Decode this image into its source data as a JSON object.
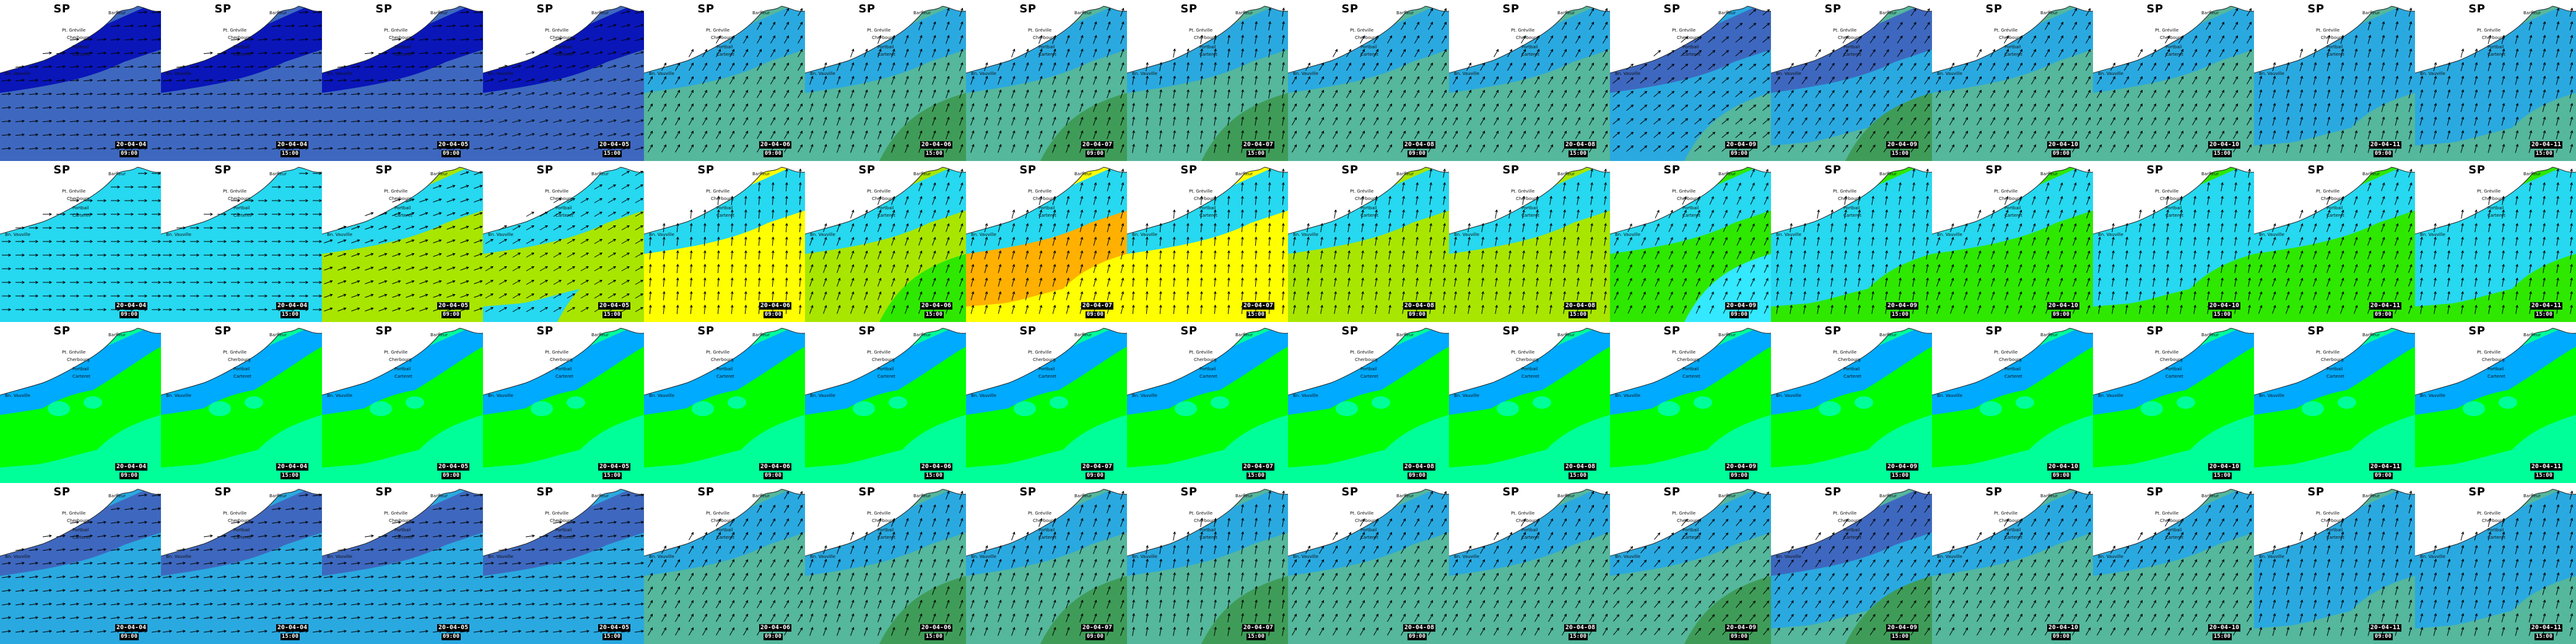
{
  "map_title": "SP",
  "place_names": [
    "Barfleur",
    "Pt. Gréville",
    "Cherbourg",
    "Portbail",
    "Carteret",
    "Bn. Vauville"
  ],
  "palette": {
    "deep_blue": "#0a16b8",
    "slate_blue": "#3e68bf",
    "mid_blue": "#2aa9e0",
    "sea_green": "#55b79c",
    "dark_green": "#3f9c58",
    "cyan": "#33e8ff",
    "light_cyan": "#26d8f0",
    "yellow_green": "#a8e600",
    "yellow": "#ffff00",
    "orange": "#ffb000",
    "green": "#2ee800",
    "bright_green": "#00ff00",
    "mint": "#00ff99",
    "sky": "#00aaff",
    "land": "#ffffff",
    "arrow": "#000000"
  },
  "rows": [
    {
      "frames": [
        {
          "date": "20-04-04",
          "time": "09:00",
          "scheme": "blue-a"
        },
        {
          "date": "20-04-04",
          "time": "15:00",
          "scheme": "blue-a"
        },
        {
          "date": "20-04-05",
          "time": "09:00",
          "scheme": "blue-a"
        },
        {
          "date": "20-04-05",
          "time": "15:00",
          "scheme": "blue-b"
        },
        {
          "date": "20-04-06",
          "time": "09:00",
          "scheme": "green-a"
        },
        {
          "date": "20-04-06",
          "time": "15:00",
          "scheme": "green-b"
        },
        {
          "date": "20-04-07",
          "time": "09:00",
          "scheme": "green-b"
        },
        {
          "date": "20-04-07",
          "time": "15:00",
          "scheme": "green-c"
        },
        {
          "date": "20-04-08",
          "time": "09:00",
          "scheme": "green-a"
        },
        {
          "date": "20-04-08",
          "time": "15:00",
          "scheme": "green-a"
        },
        {
          "date": "20-04-09",
          "time": "09:00",
          "scheme": "blue-c"
        },
        {
          "date": "20-04-09",
          "time": "15:00",
          "scheme": "green-d"
        },
        {
          "date": "20-04-10",
          "time": "09:00",
          "scheme": "green-a"
        },
        {
          "date": "20-04-10",
          "time": "15:00",
          "scheme": "green-a"
        },
        {
          "date": "20-04-11",
          "time": "09:00",
          "scheme": "green-e"
        },
        {
          "date": "20-04-11",
          "time": "15:00",
          "scheme": "green-e"
        }
      ]
    },
    {
      "frames": [
        {
          "date": "20-04-04",
          "time": "09:00",
          "scheme": "cyan"
        },
        {
          "date": "20-04-04",
          "time": "15:00",
          "scheme": "cyan"
        },
        {
          "date": "20-04-05",
          "time": "09:00",
          "scheme": "cyan-yg"
        },
        {
          "date": "20-04-05",
          "time": "15:00",
          "scheme": "cyan-yg2"
        },
        {
          "date": "20-04-06",
          "time": "09:00",
          "scheme": "yellow"
        },
        {
          "date": "20-04-06",
          "time": "15:00",
          "scheme": "yg-green"
        },
        {
          "date": "20-04-07",
          "time": "09:00",
          "scheme": "orange"
        },
        {
          "date": "20-04-07",
          "time": "15:00",
          "scheme": "yellow"
        },
        {
          "date": "20-04-08",
          "time": "09:00",
          "scheme": "yg"
        },
        {
          "date": "20-04-08",
          "time": "15:00",
          "scheme": "yg"
        },
        {
          "date": "20-04-09",
          "time": "09:00",
          "scheme": "green-cyan"
        },
        {
          "date": "20-04-09",
          "time": "15:00",
          "scheme": "cyan-green"
        },
        {
          "date": "20-04-10",
          "time": "09:00",
          "scheme": "green-cyan2"
        },
        {
          "date": "20-04-10",
          "time": "15:00",
          "scheme": "cyan-green"
        },
        {
          "date": "20-04-11",
          "time": "09:00",
          "scheme": "green-cyan2"
        },
        {
          "date": "20-04-11",
          "time": "15:00",
          "scheme": "cyan-green"
        }
      ]
    },
    {
      "frames": [
        {
          "date": "20-04-04",
          "time": "09:00",
          "scheme": "depth"
        },
        {
          "date": "20-04-04",
          "time": "15:00",
          "scheme": "depth"
        },
        {
          "date": "20-04-05",
          "time": "09:00",
          "scheme": "depth"
        },
        {
          "date": "20-04-05",
          "time": "15:00",
          "scheme": "depth"
        },
        {
          "date": "20-04-06",
          "time": "09:00",
          "scheme": "depth"
        },
        {
          "date": "20-04-06",
          "time": "15:00",
          "scheme": "depth"
        },
        {
          "date": "20-04-07",
          "time": "09:00",
          "scheme": "depth"
        },
        {
          "date": "20-04-07",
          "time": "15:00",
          "scheme": "depth"
        },
        {
          "date": "20-04-08",
          "time": "09:00",
          "scheme": "depth"
        },
        {
          "date": "20-04-08",
          "time": "15:00",
          "scheme": "depth"
        },
        {
          "date": "20-04-09",
          "time": "09:00",
          "scheme": "depth"
        },
        {
          "date": "20-04-09",
          "time": "15:00",
          "scheme": "depth"
        },
        {
          "date": "20-04-10",
          "time": "09:00",
          "scheme": "depth"
        },
        {
          "date": "20-04-10",
          "time": "15:00",
          "scheme": "depth"
        },
        {
          "date": "20-04-11",
          "time": "09:00",
          "scheme": "depth"
        },
        {
          "date": "20-04-11",
          "time": "15:00",
          "scheme": "depth"
        }
      ]
    },
    {
      "frames": [
        {
          "date": "20-04-04",
          "time": "09:00",
          "scheme": "blue-d"
        },
        {
          "date": "20-04-04",
          "time": "15:00",
          "scheme": "blue-d"
        },
        {
          "date": "20-04-05",
          "time": "09:00",
          "scheme": "blue-d"
        },
        {
          "date": "20-04-05",
          "time": "15:00",
          "scheme": "blue-d"
        },
        {
          "date": "20-04-06",
          "time": "09:00",
          "scheme": "green-a"
        },
        {
          "date": "20-04-06",
          "time": "15:00",
          "scheme": "green-b"
        },
        {
          "date": "20-04-07",
          "time": "09:00",
          "scheme": "green-b"
        },
        {
          "date": "20-04-07",
          "time": "15:00",
          "scheme": "green-c"
        },
        {
          "date": "20-04-08",
          "time": "09:00",
          "scheme": "green-a"
        },
        {
          "date": "20-04-08",
          "time": "15:00",
          "scheme": "green-a"
        },
        {
          "date": "20-04-09",
          "time": "09:00",
          "scheme": "green-f"
        },
        {
          "date": "20-04-09",
          "time": "15:00",
          "scheme": "green-d"
        },
        {
          "date": "20-04-10",
          "time": "09:00",
          "scheme": "green-a"
        },
        {
          "date": "20-04-10",
          "time": "15:00",
          "scheme": "green-a"
        },
        {
          "date": "20-04-11",
          "time": "09:00",
          "scheme": "green-e"
        },
        {
          "date": "20-04-11",
          "time": "15:00",
          "scheme": "green-e"
        }
      ]
    }
  ]
}
